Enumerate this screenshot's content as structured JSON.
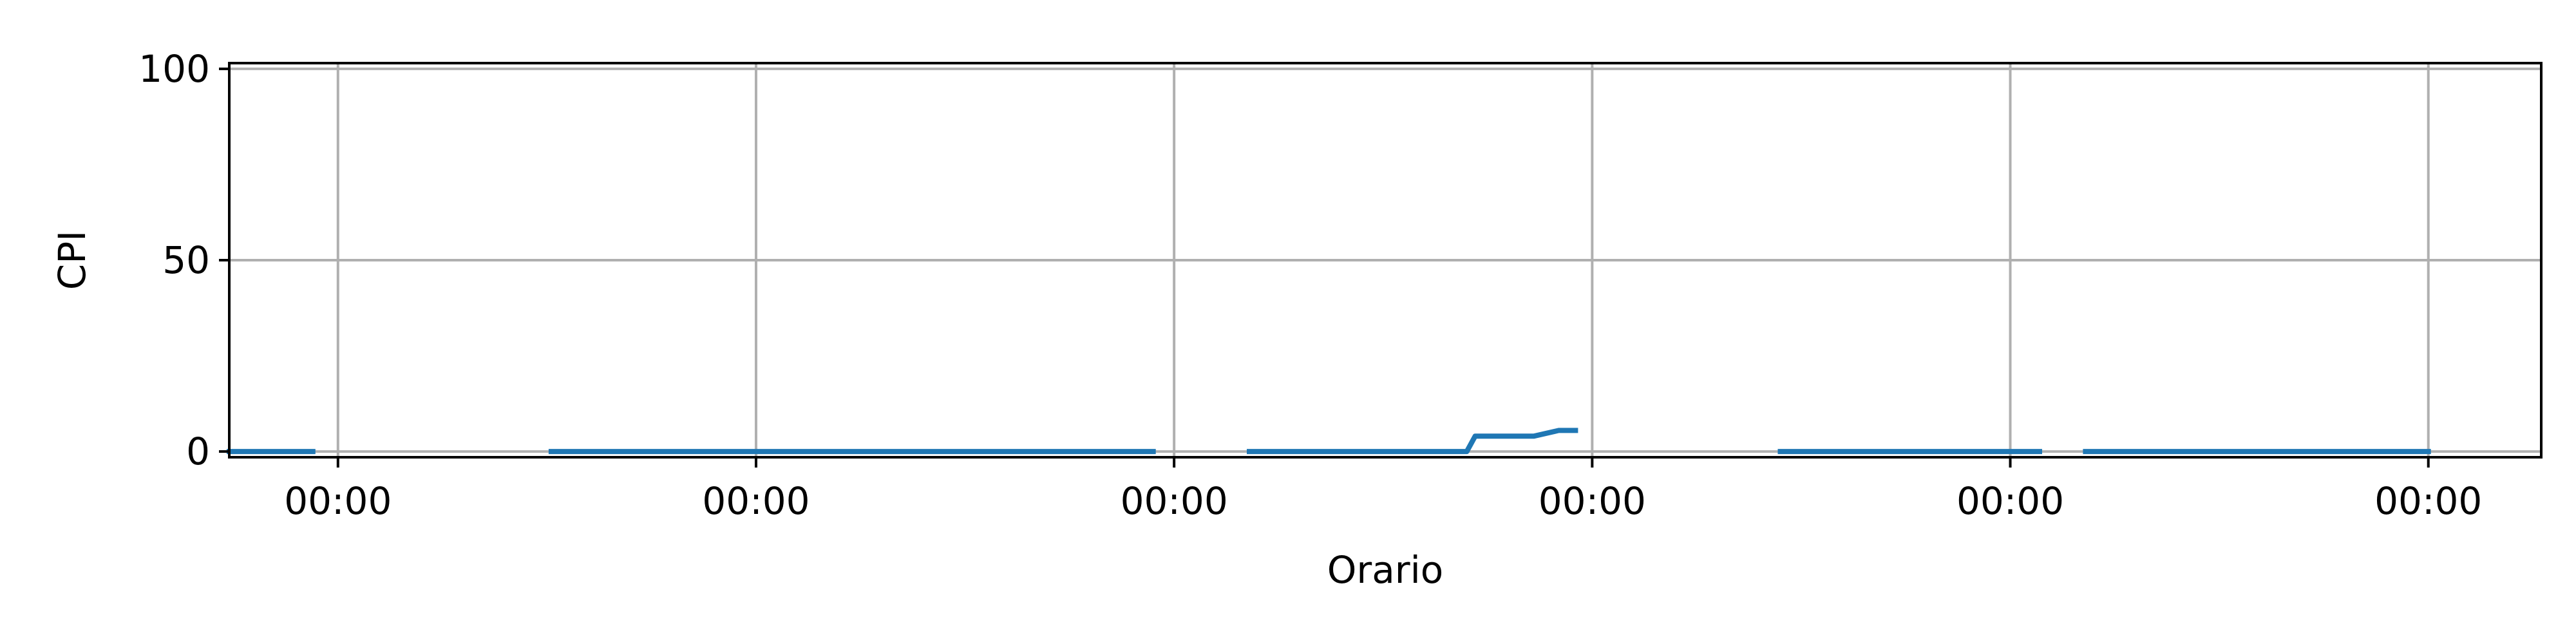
{
  "chart_data": {
    "type": "line",
    "title": "",
    "xlabel": "Orario",
    "ylabel": "CPI",
    "ylim": [
      -1.5,
      101.5
    ],
    "xlim": [
      -0.26,
      5.27
    ],
    "grid": true,
    "legend": "none",
    "yticks": [
      0,
      50,
      100
    ],
    "xticks": [
      {
        "pos": 0,
        "label": "00:00"
      },
      {
        "pos": 1,
        "label": "00:00"
      },
      {
        "pos": 2,
        "label": "00:00"
      },
      {
        "pos": 3,
        "label": "00:00"
      },
      {
        "pos": 4,
        "label": "00:00"
      },
      {
        "pos": 5,
        "label": "00:00"
      }
    ],
    "line_color": "#1f77b4",
    "series": [
      {
        "segments": [
          {
            "x": [
              -0.53,
              -0.06
            ],
            "y": [
              0,
              0
            ]
          },
          {
            "x": [
              0.51,
              1.95
            ],
            "y": [
              0,
              0
            ]
          },
          {
            "x": [
              2.18,
              2.7,
              2.72,
              2.86,
              2.92,
              2.96
            ],
            "y": [
              0,
              0,
              4,
              4,
              5.5,
              5.5
            ]
          },
          {
            "x": [
              3.45,
              4.07
            ],
            "y": [
              0,
              0
            ]
          },
          {
            "x": [
              4.18,
              5.0
            ],
            "y": [
              0,
              0
            ]
          }
        ]
      }
    ]
  }
}
